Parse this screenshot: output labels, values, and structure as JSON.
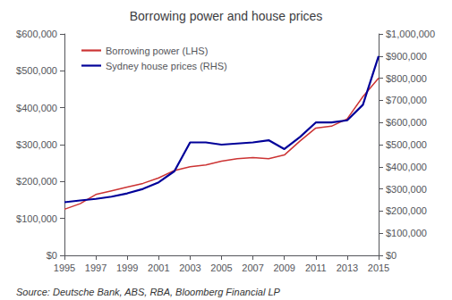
{
  "chart_data": {
    "type": "line",
    "title": "Borrowing power and house prices",
    "annotations": [
      "Source: Deutsche Bank, ABS, RBA, Bloomberg Financial LP"
    ],
    "x": [
      1995,
      1996,
      1997,
      1998,
      1999,
      2000,
      2001,
      2002,
      2003,
      2004,
      2005,
      2006,
      2007,
      2008,
      2009,
      2010,
      2011,
      2012,
      2013,
      2014,
      2015
    ],
    "series": [
      {
        "name": "Borrowing power (LHS)",
        "color": "#cc3333",
        "values": [
          125000,
          140000,
          165000,
          175000,
          185000,
          195000,
          210000,
          230000,
          240000,
          245000,
          255000,
          262000,
          265000,
          262000,
          272000,
          310000,
          345000,
          350000,
          370000,
          430000,
          480000
        ]
      },
      {
        "name": "Sydney house prices (RHS)",
        "color": "#000099",
        "axis": "y2",
        "values": [
          240000,
          248000,
          255000,
          265000,
          280000,
          300000,
          330000,
          380000,
          510000,
          510000,
          500000,
          505000,
          510000,
          520000,
          480000,
          535000,
          600000,
          600000,
          610000,
          680000,
          900000
        ]
      }
    ],
    "xlim": [
      1995,
      2015
    ],
    "xticks": [
      1995,
      1997,
      1999,
      2001,
      2003,
      2005,
      2007,
      2009,
      2011,
      2013,
      2015
    ],
    "ylim": [
      0,
      600000
    ],
    "yticks": [
      {
        "value": 0,
        "label": "$0"
      },
      {
        "value": 100000,
        "label": "$100,000"
      },
      {
        "value": 200000,
        "label": "$200,000"
      },
      {
        "value": 300000,
        "label": "$300,000"
      },
      {
        "value": 400000,
        "label": "$400,000"
      },
      {
        "value": 500000,
        "label": "$500,000"
      },
      {
        "value": 600000,
        "label": "$600,000"
      }
    ],
    "y2lim": [
      0,
      1000000
    ],
    "y2ticks": [
      {
        "value": 0,
        "label": "$0"
      },
      {
        "value": 100000,
        "label": "$100,000"
      },
      {
        "value": 200000,
        "label": "$200,000"
      },
      {
        "value": 300000,
        "label": "$300,000"
      },
      {
        "value": 400000,
        "label": "$400,000"
      },
      {
        "value": 500000,
        "label": "$500,000"
      },
      {
        "value": 600000,
        "label": "$600,000"
      },
      {
        "value": 700000,
        "label": "$700,000"
      },
      {
        "value": 800000,
        "label": "$800,000"
      },
      {
        "value": 900000,
        "label": "$900,000"
      },
      {
        "value": 1000000,
        "label": "$1,000,000"
      }
    ],
    "grid": false,
    "legend": "upper left"
  }
}
